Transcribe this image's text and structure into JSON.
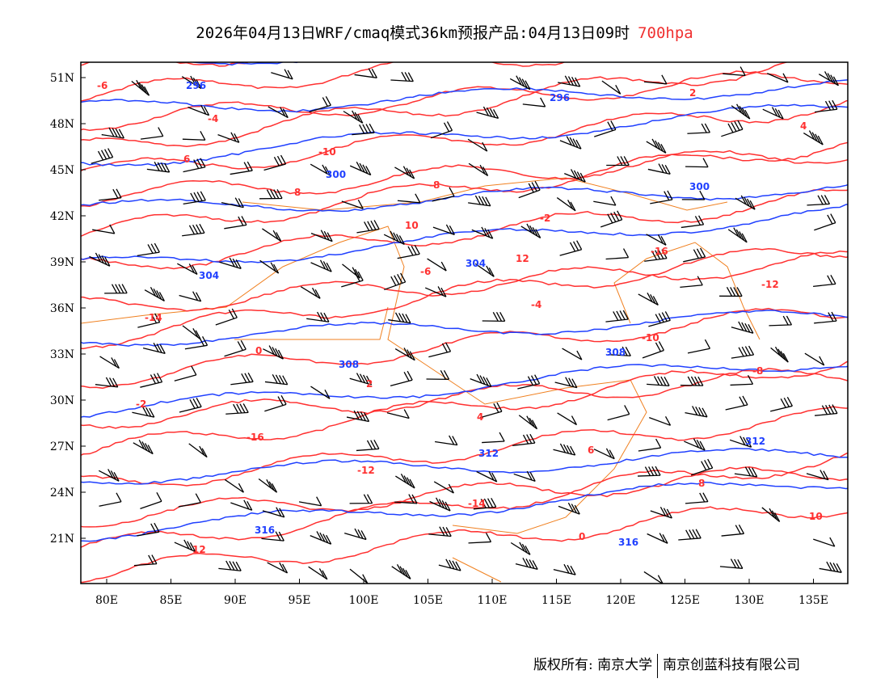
{
  "title": {
    "main": "2026年04月13日WRF/cmaq模式36km预报产品:04月13日09时",
    "level": "700hpa"
  },
  "axes": {
    "lat_labels": [
      "51N",
      "48N",
      "45N",
      "42N",
      "39N",
      "36N",
      "33N",
      "30N",
      "27N",
      "24N",
      "21N"
    ],
    "lon_labels": [
      "80E",
      "85E",
      "90E",
      "95E",
      "100E",
      "105E",
      "110E",
      "115E",
      "120E",
      "125E",
      "130E",
      "135E"
    ],
    "lat_values": [
      51,
      48,
      45,
      42,
      39,
      36,
      33,
      30,
      27,
      24,
      21
    ],
    "lon_values": [
      80,
      85,
      90,
      95,
      100,
      105,
      110,
      115,
      120,
      125,
      130,
      135
    ]
  },
  "colors": {
    "temperature": "#ff3030",
    "height": "#2040ff",
    "boundary": "#f08020",
    "wind": "#000000"
  },
  "temperature_labels": [
    "-6",
    "-4",
    "-10",
    "-8",
    "-2",
    "-16",
    "-12",
    "-14",
    "0",
    "2",
    "4",
    "6",
    "8",
    "10",
    "12"
  ],
  "height_labels": [
    "296",
    "300",
    "304",
    "308",
    "312",
    "316"
  ],
  "footer": {
    "copyright": "版权所有: 南京大学",
    "company": "南京创蓝科技有限公司"
  }
}
